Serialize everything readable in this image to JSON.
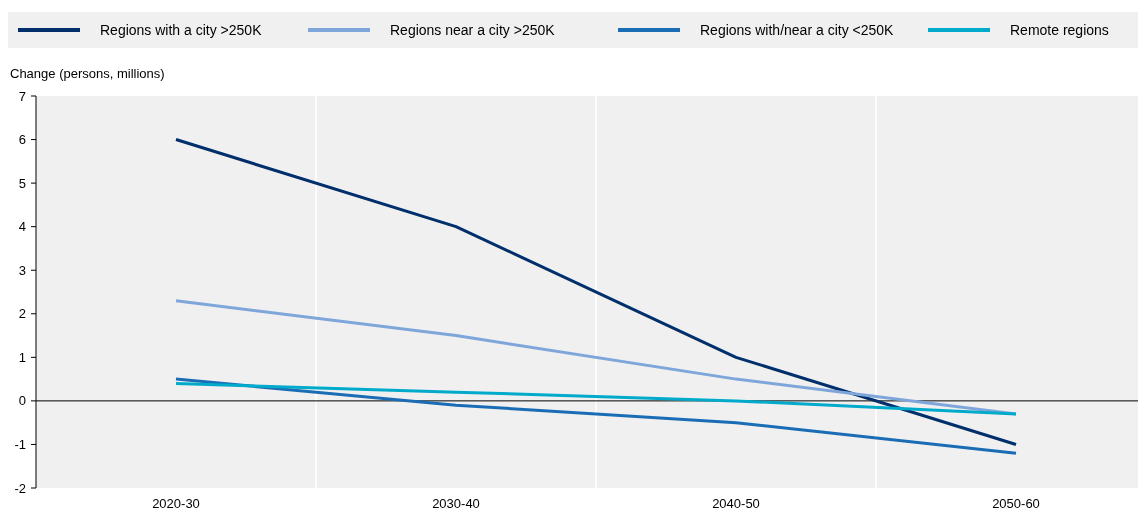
{
  "chart_data": {
    "type": "line",
    "ylabel": "Change (persons, millions)",
    "categories": [
      "2020-30",
      "2030-40",
      "2040-50",
      "2050-60"
    ],
    "series": [
      {
        "name": "Regions with a city >250K",
        "color": "#002f6c",
        "values": [
          6,
          4,
          1,
          -1
        ]
      },
      {
        "name": "Regions near a city >250K",
        "color": "#7fa6da",
        "values": [
          2.3,
          1.5,
          0.5,
          -0.3
        ]
      },
      {
        "name": "Regions with/near a city <250K",
        "color": "#1a6db5",
        "values": [
          0.5,
          -0.1,
          -0.5,
          -1.2
        ]
      },
      {
        "name": "Remote regions",
        "color": "#00aacb",
        "values": [
          0.4,
          0.2,
          0,
          -0.3
        ]
      }
    ],
    "ylim": [
      -2,
      7
    ],
    "yticks": [
      -2,
      -1,
      0,
      1,
      2,
      3,
      4,
      5,
      6,
      7
    ],
    "grid": "x",
    "legend": "top",
    "marker": "none",
    "line_style": "solid"
  }
}
